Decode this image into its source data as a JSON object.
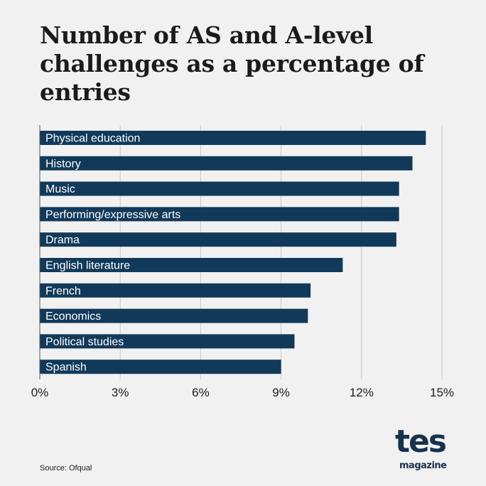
{
  "title": "Number of AS and A-level challenges as a percentage of entries",
  "source": "Source: Ofqual",
  "logo": {
    "main": "tes",
    "sub": "magazine"
  },
  "colors": {
    "bar": "#11395a",
    "grid": "#c8c8c8",
    "axis": "#555555",
    "background": "#f2f1f2"
  },
  "chart_data": {
    "type": "bar",
    "orientation": "horizontal",
    "title": "Number of AS and A-level challenges as a percentage of entries",
    "xlabel": "",
    "ylabel": "",
    "categories": [
      "Physical education",
      "History",
      "Music",
      "Performing/expressive arts",
      "Drama",
      "English literature",
      "French",
      "Economics",
      "Political studies",
      "Spanish"
    ],
    "values": [
      14.4,
      13.9,
      13.4,
      13.4,
      13.3,
      11.3,
      10.1,
      10.0,
      9.5,
      9.0
    ],
    "xlim": [
      0,
      15
    ],
    "xticks": [
      0,
      3,
      6,
      9,
      12,
      15
    ],
    "xtick_labels": [
      "0%",
      "3%",
      "6%",
      "9%",
      "12%",
      "15%"
    ],
    "grid": true,
    "legend": "none"
  }
}
